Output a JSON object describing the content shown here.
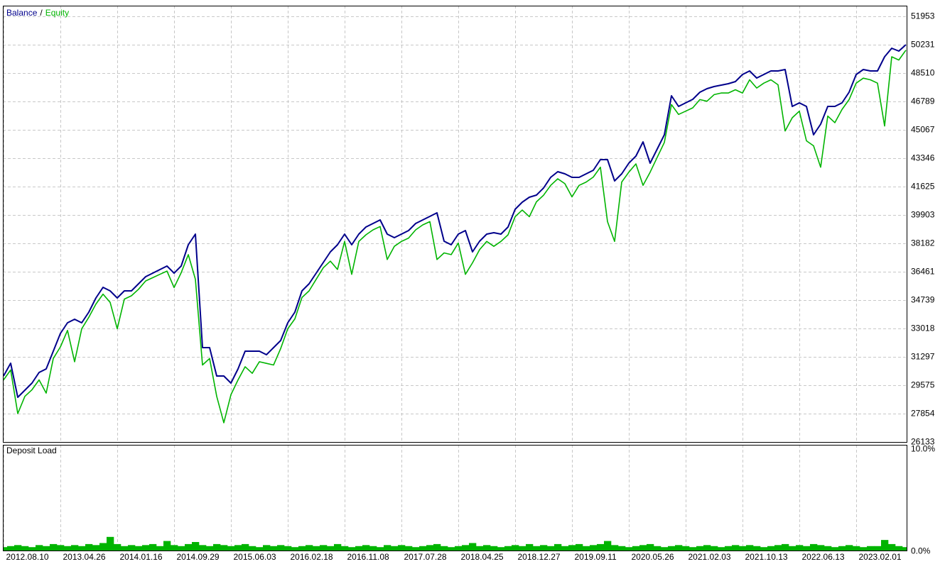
{
  "chart_data": [
    {
      "type": "line",
      "legend_separator": "/",
      "xlim": [
        0,
        127
      ],
      "ylim": [
        26133,
        52598
      ],
      "yticks": [
        26133,
        27854,
        29575,
        31297,
        33018,
        34739,
        36461,
        38182,
        39903,
        41625,
        43346,
        45067,
        46789,
        48510,
        50231,
        51953
      ],
      "grid": true,
      "series": [
        {
          "name": "Balance",
          "color": "#00008b",
          "values": [
            30135,
            30909,
            28844,
            29274,
            29704,
            30350,
            30565,
            31641,
            32717,
            33362,
            33577,
            33362,
            34007,
            34868,
            35514,
            35298,
            34868,
            35298,
            35298,
            35729,
            36159,
            36374,
            36589,
            36804,
            36374,
            36804,
            38095,
            38741,
            31856,
            31856,
            30135,
            30135,
            29704,
            30565,
            31641,
            31641,
            31641,
            31426,
            31856,
            32286,
            33362,
            34007,
            35298,
            35729,
            36374,
            37020,
            37665,
            38095,
            38741,
            38095,
            38741,
            39171,
            39386,
            39601,
            38741,
            38526,
            38741,
            38956,
            39386,
            39601,
            39817,
            40032,
            38310,
            38095,
            38741,
            38956,
            37665,
            38310,
            38741,
            38827,
            38741,
            39171,
            40247,
            40677,
            40978,
            41107,
            41538,
            42183,
            42527,
            42398,
            42183,
            42183,
            42398,
            42613,
            43259,
            43259,
            41968,
            42398,
            43044,
            43474,
            44335,
            43044,
            43904,
            44765,
            47132,
            46486,
            46701,
            46916,
            47347,
            47562,
            47691,
            47777,
            47863,
            47992,
            48423,
            48638,
            48207,
            48423,
            48638,
            48638,
            48724,
            46486,
            46701,
            46486,
            44765,
            45410,
            46486,
            46486,
            46701,
            47347,
            48423,
            48724,
            48638,
            48638,
            49498,
            50015,
            49843,
            50230
          ]
        },
        {
          "name": "Equity",
          "color": "#00b400",
          "values": [
            29900,
            30500,
            27854,
            28900,
            29300,
            29900,
            29100,
            31200,
            31900,
            32900,
            31000,
            33000,
            33700,
            34500,
            35100,
            34600,
            33000,
            34800,
            35000,
            35400,
            35900,
            36100,
            36300,
            36500,
            35500,
            36400,
            37500,
            36000,
            30800,
            31200,
            28900,
            27300,
            29000,
            29900,
            30700,
            30300,
            31000,
            30900,
            30800,
            31800,
            33000,
            33600,
            34900,
            35300,
            36000,
            36700,
            37100,
            36600,
            38300,
            36300,
            38300,
            38700,
            39000,
            39200,
            37200,
            38000,
            38300,
            38500,
            39000,
            39300,
            39500,
            37200,
            37600,
            37500,
            38200,
            36300,
            37000,
            37800,
            38300,
            38000,
            38300,
            38700,
            39800,
            40200,
            39800,
            40700,
            41100,
            41700,
            42100,
            41800,
            41000,
            41700,
            41900,
            42200,
            42800,
            39500,
            38300,
            41900,
            42500,
            43000,
            41700,
            42500,
            43400,
            44300,
            46600,
            46000,
            46200,
            46400,
            46900,
            46800,
            47200,
            47300,
            47300,
            47500,
            47300,
            48100,
            47600,
            47900,
            48100,
            47800,
            45000,
            45800,
            46200,
            44400,
            44100,
            42800,
            45900,
            45500,
            46300,
            46900,
            47900,
            48200,
            48100,
            47900,
            45300,
            49500,
            49300,
            49900
          ]
        }
      ]
    },
    {
      "type": "bar",
      "title": "Deposit Load",
      "color": "#00b400",
      "xlim": [
        0,
        127
      ],
      "xticks": [
        {
          "value": 0,
          "label": "2012.08.10"
        },
        {
          "value": 8,
          "label": "2013.04.26"
        },
        {
          "value": 16,
          "label": "2014.01.16"
        },
        {
          "value": 24,
          "label": "2014.09.29"
        },
        {
          "value": 32,
          "label": "2015.06.03"
        },
        {
          "value": 40,
          "label": "2016.02.18"
        },
        {
          "value": 48,
          "label": "2016.11.08"
        },
        {
          "value": 56,
          "label": "2017.07.28"
        },
        {
          "value": 64,
          "label": "2018.04.25"
        },
        {
          "value": 72,
          "label": "2018.12.27"
        },
        {
          "value": 80,
          "label": "2019.09.11"
        },
        {
          "value": 88,
          "label": "2020.05.26"
        },
        {
          "value": 96,
          "label": "2021.02.03"
        },
        {
          "value": 104,
          "label": "2021.10.13"
        },
        {
          "value": 112,
          "label": "2022.06.13"
        },
        {
          "value": 120,
          "label": "2023.02.01"
        }
      ],
      "ylim": [
        0,
        10.4
      ],
      "yticks": [
        {
          "value": 0,
          "label": "0.0%"
        },
        {
          "value": 10,
          "label": "10.0%"
        }
      ],
      "values": [
        0.4,
        0.5,
        0.6,
        0.5,
        0.4,
        0.6,
        0.5,
        0.7,
        0.6,
        0.5,
        0.6,
        0.5,
        0.7,
        0.6,
        0.8,
        1.4,
        0.7,
        0.5,
        0.6,
        0.5,
        0.6,
        0.7,
        0.5,
        1.0,
        0.6,
        0.5,
        0.7,
        0.9,
        0.6,
        0.5,
        0.7,
        0.6,
        0.5,
        0.6,
        0.7,
        0.5,
        0.4,
        0.6,
        0.5,
        0.6,
        0.5,
        0.4,
        0.5,
        0.6,
        0.5,
        0.6,
        0.5,
        0.7,
        0.5,
        0.4,
        0.5,
        0.6,
        0.5,
        0.4,
        0.6,
        0.5,
        0.6,
        0.5,
        0.4,
        0.5,
        0.6,
        0.7,
        0.5,
        0.4,
        0.5,
        0.6,
        0.8,
        0.5,
        0.6,
        0.5,
        0.4,
        0.5,
        0.6,
        0.5,
        0.7,
        0.5,
        0.6,
        0.5,
        0.7,
        0.5,
        0.6,
        0.7,
        0.5,
        0.6,
        0.7,
        1.0,
        0.6,
        0.5,
        0.4,
        0.5,
        0.6,
        0.7,
        0.5,
        0.4,
        0.5,
        0.6,
        0.5,
        0.4,
        0.5,
        0.6,
        0.5,
        0.4,
        0.5,
        0.6,
        0.5,
        0.6,
        0.5,
        0.4,
        0.5,
        0.6,
        0.7,
        0.5,
        0.6,
        0.5,
        0.7,
        0.6,
        0.5,
        0.4,
        0.5,
        0.6,
        0.5,
        0.4,
        0.5,
        0.5,
        1.1,
        0.7,
        0.5,
        0.4
      ]
    }
  ]
}
